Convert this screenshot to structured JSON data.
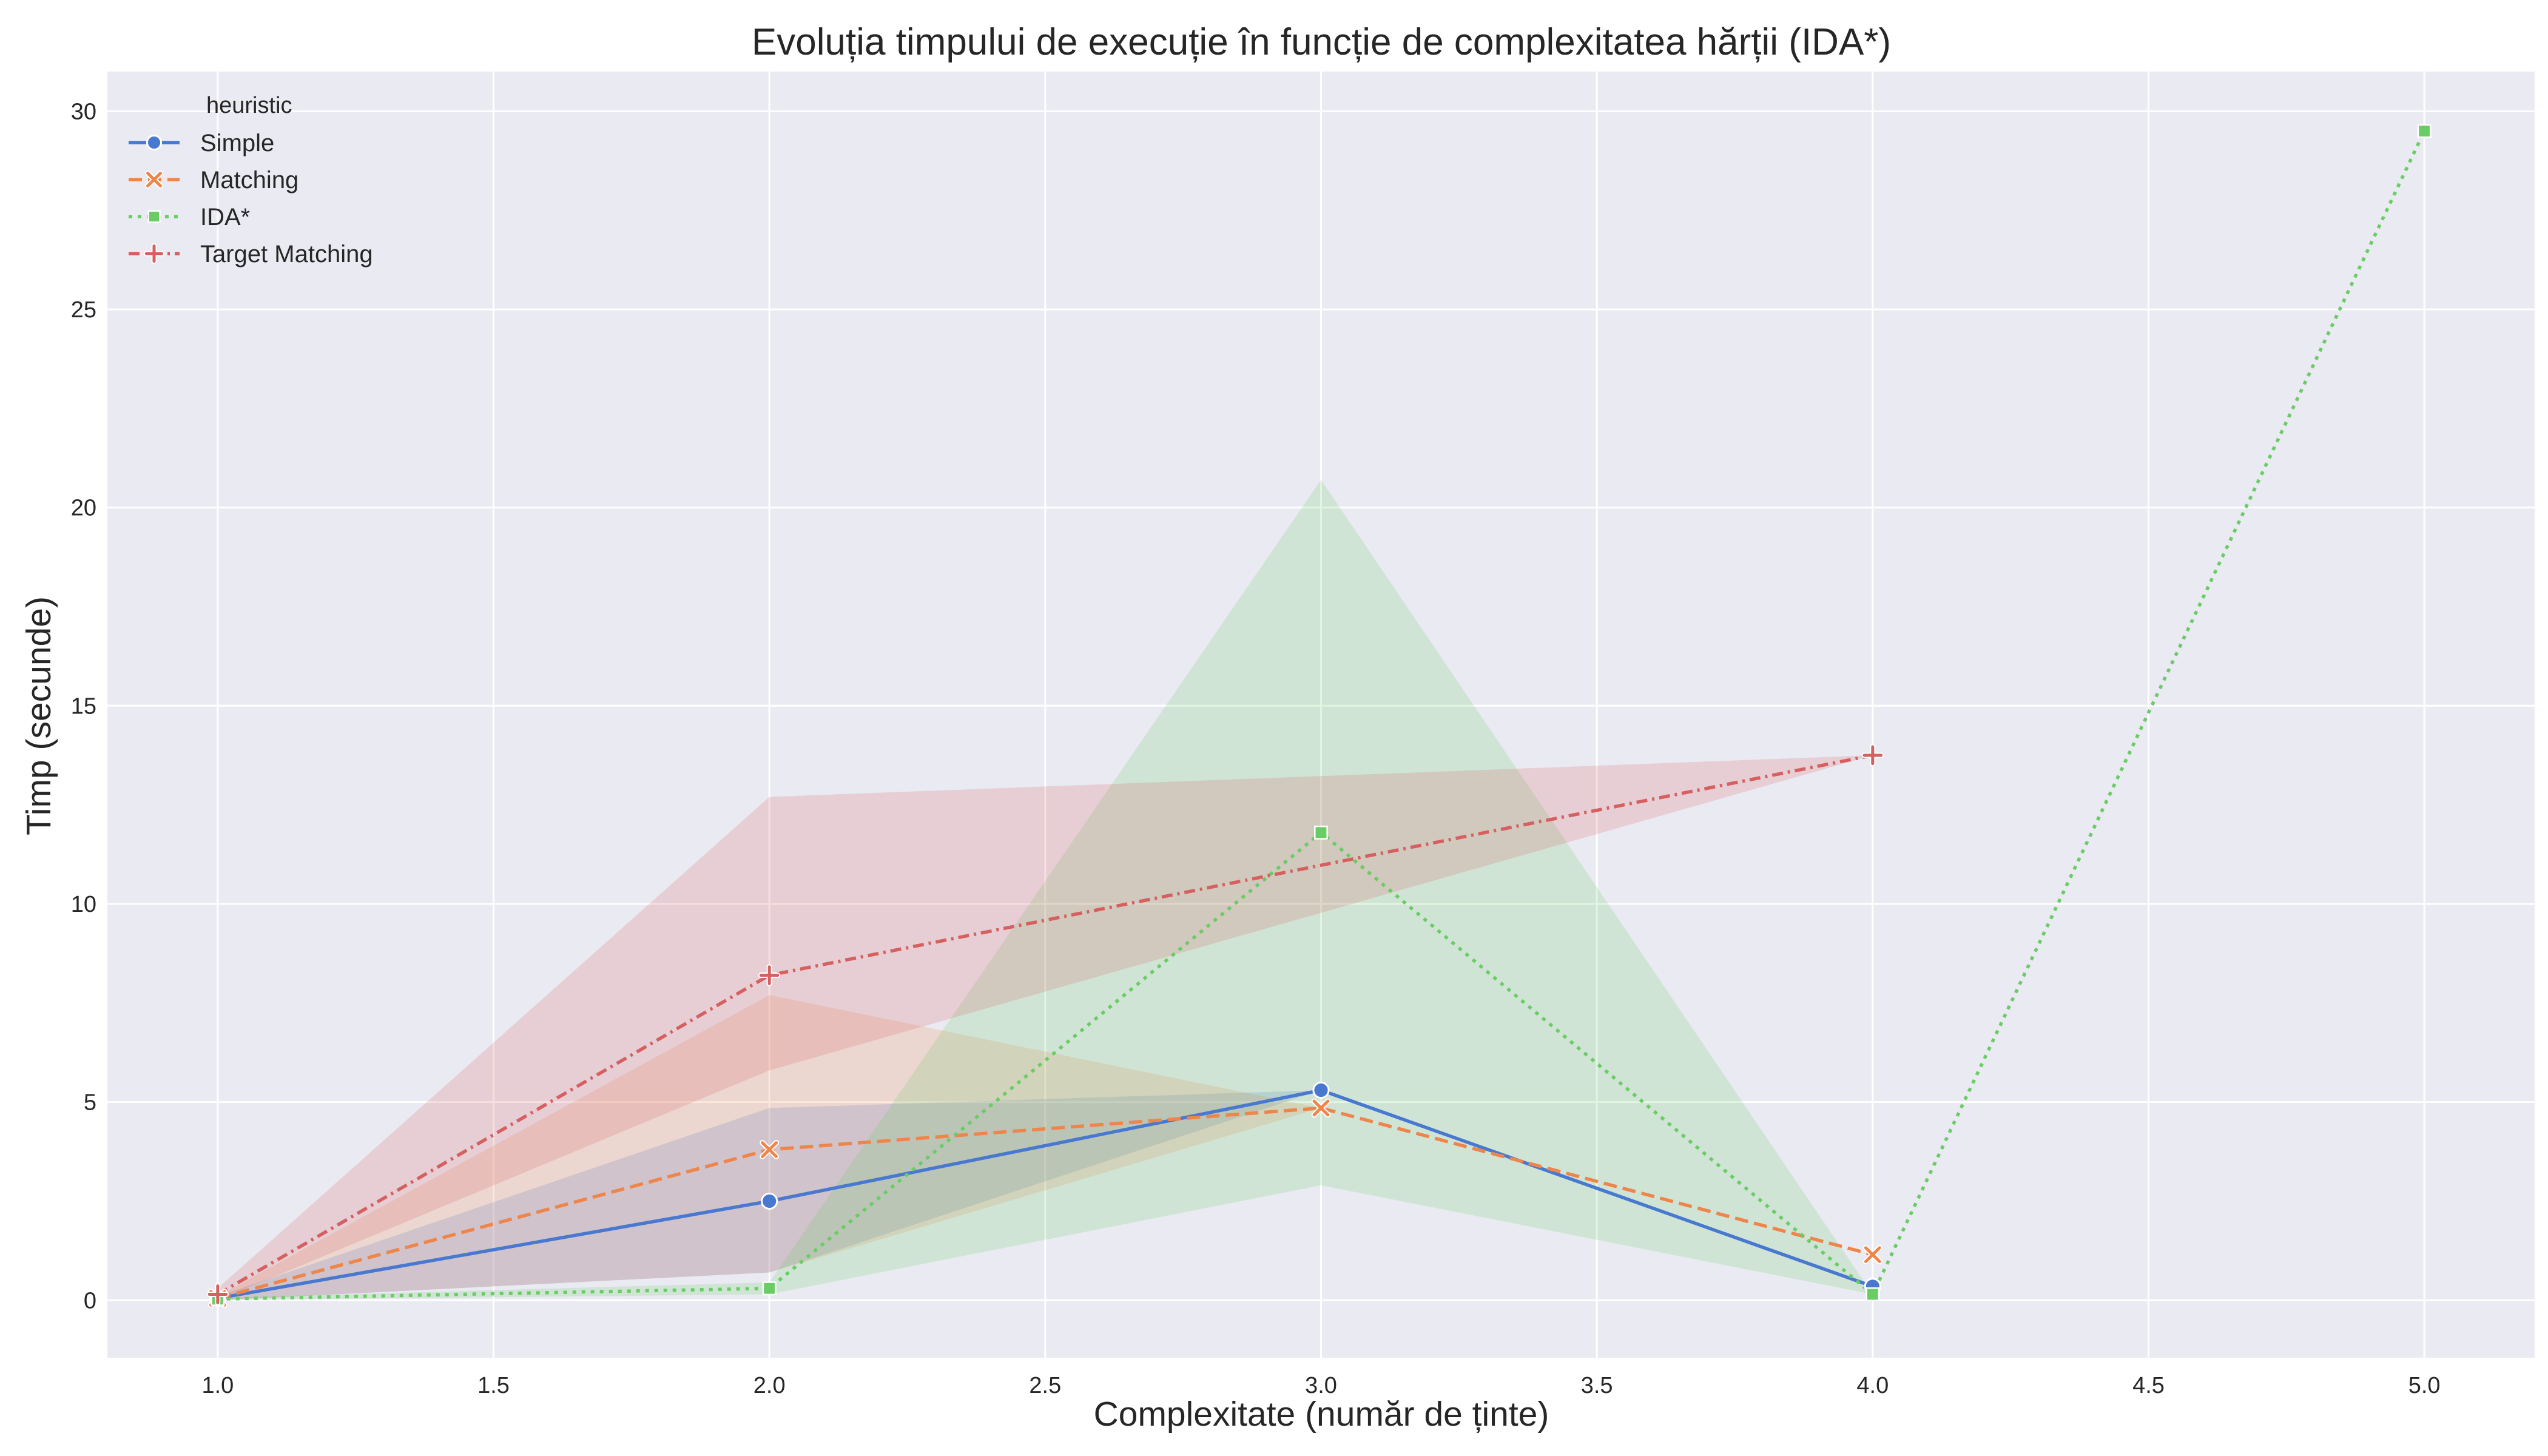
{
  "chart_data": {
    "type": "line",
    "title": "Evoluția timpului de execuție în funcție de complexitatea hărții (IDA*)",
    "xlabel": "Complexitate (număr de ținte)",
    "ylabel": "Timp (secunde)",
    "xlim": [
      0.8,
      5.2
    ],
    "ylim": [
      -1.45,
      31
    ],
    "xticks": [
      "1.0",
      "1.5",
      "2.0",
      "2.5",
      "3.0",
      "3.5",
      "4.0",
      "4.5",
      "5.0"
    ],
    "yticks": [
      "0",
      "5",
      "10",
      "15",
      "20",
      "25",
      "30"
    ],
    "grid": true,
    "background": "#eaeaf2",
    "legend": {
      "title": "heuristic",
      "placement": "top-left"
    },
    "series": [
      {
        "name": "Simple",
        "color": "#4878d0",
        "dash": "solid",
        "marker": "circle",
        "x": [
          1,
          2,
          3,
          4
        ],
        "y": [
          0.05,
          2.5,
          5.3,
          0.35
        ],
        "ci_low": [
          0.0,
          0.7,
          5.3,
          0.35
        ],
        "ci_high": [
          0.1,
          4.85,
          5.3,
          0.35
        ]
      },
      {
        "name": "Matching",
        "color": "#ee854a",
        "dash": "dashed",
        "marker": "x",
        "x": [
          1,
          2,
          3,
          4
        ],
        "y": [
          0.05,
          3.8,
          4.85,
          1.15
        ],
        "ci_low": [
          0.0,
          0.7,
          4.85,
          1.15
        ],
        "ci_high": [
          0.1,
          7.7,
          4.85,
          1.15
        ]
      },
      {
        "name": "IDA*",
        "color": "#6acc64",
        "dash": "dotted",
        "marker": "square",
        "x": [
          1,
          2,
          3,
          4,
          5
        ],
        "y": [
          0.03,
          0.3,
          11.8,
          0.15,
          29.5
        ],
        "ci_low": [
          0.0,
          0.15,
          2.9,
          0.15,
          29.5
        ],
        "ci_high": [
          0.06,
          0.45,
          20.7,
          0.15,
          29.5
        ]
      },
      {
        "name": "Target Matching",
        "color": "#d65f5f",
        "dash": "dashdot",
        "marker": "plus",
        "x": [
          1,
          2,
          4
        ],
        "y": [
          0.15,
          8.2,
          13.75
        ],
        "ci_low": [
          0.0,
          5.8,
          13.75
        ],
        "ci_high": [
          0.3,
          12.7,
          13.75
        ]
      }
    ]
  }
}
